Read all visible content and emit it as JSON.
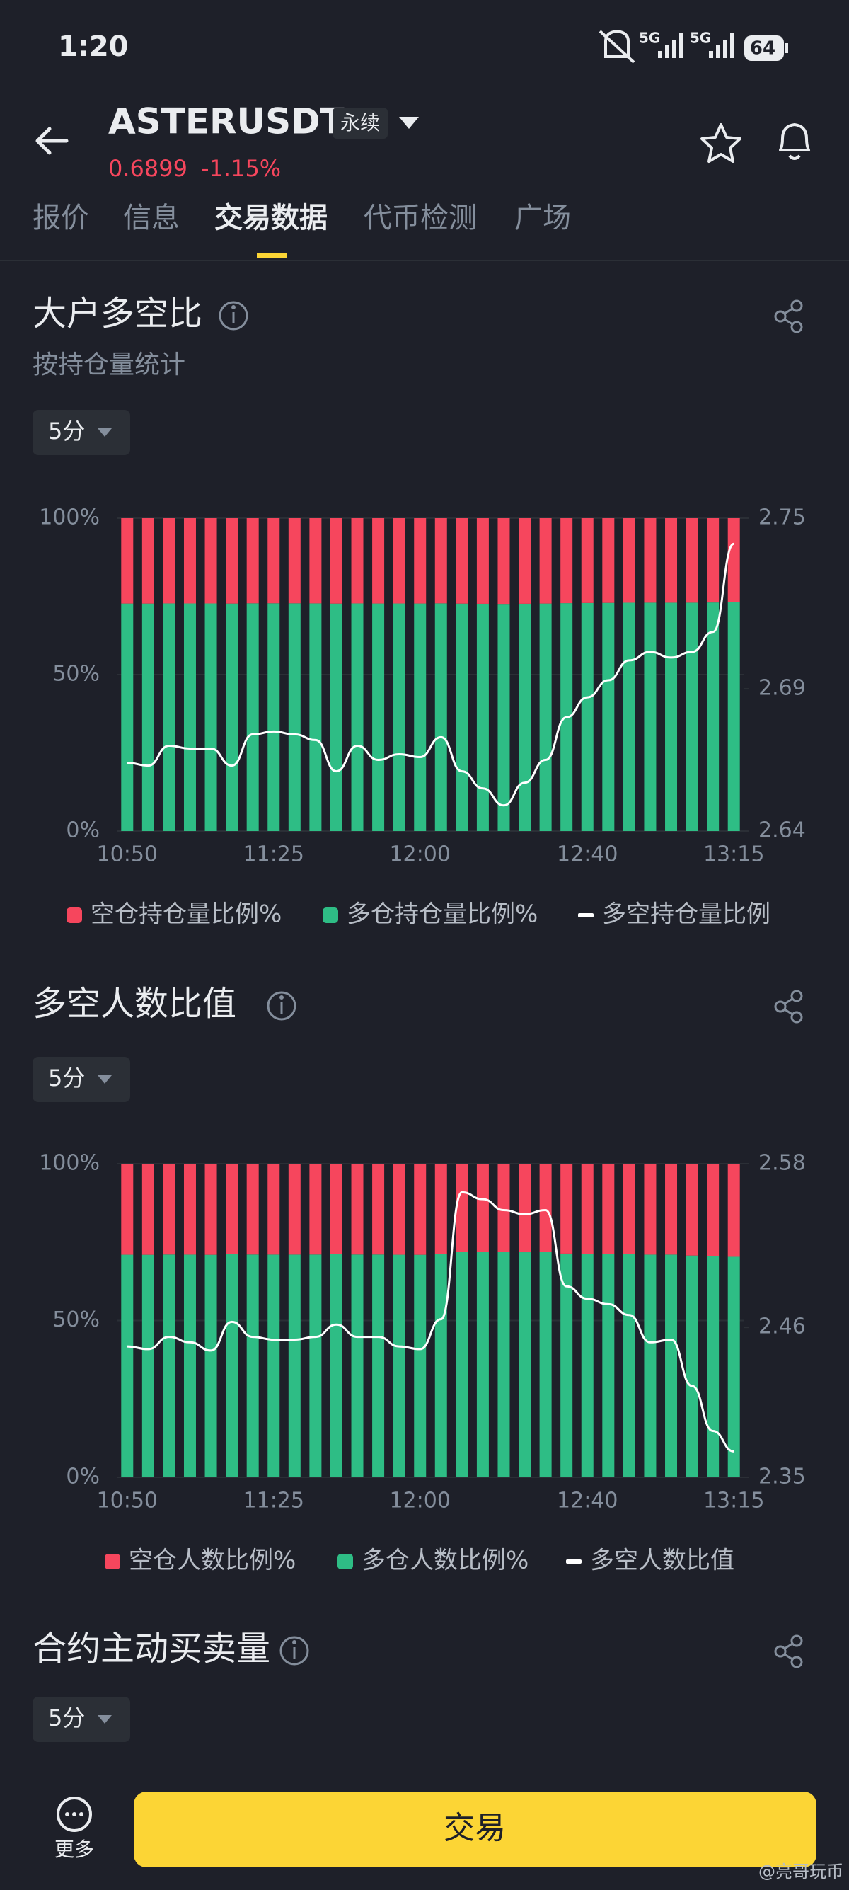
{
  "status_bar": {
    "time": "1:20",
    "network_1": "5G",
    "network_2": "5G",
    "battery": "64"
  },
  "header": {
    "symbol": "ASTERUSDT",
    "contract_type": "永续",
    "price": "0.6899",
    "change": "-1.15%"
  },
  "tabs": [
    "报价",
    "信息",
    "交易数据",
    "代币检测",
    "广场"
  ],
  "sections": [
    {
      "title": "大户多空比",
      "subtitle": "按持仓量统计",
      "interval": "5分"
    },
    {
      "title": "多空人数比值",
      "interval": "5分"
    },
    {
      "title": "合约主动买卖量",
      "interval": "5分"
    }
  ],
  "chart_data": [
    {
      "type": "bar",
      "stacked": true,
      "grid": true,
      "categories": [
        "10:50",
        null,
        null,
        null,
        null,
        null,
        null,
        "11:25",
        null,
        null,
        null,
        null,
        null,
        null,
        "12:00",
        null,
        null,
        null,
        null,
        null,
        null,
        null,
        "12:40",
        null,
        null,
        null,
        null,
        null,
        null,
        "13:15"
      ],
      "ylim": [
        0,
        100
      ],
      "yticks": [
        {
          "value": 0,
          "label": "0%"
        },
        {
          "value": 50,
          "label": "50%"
        },
        {
          "value": 100,
          "label": "100%"
        }
      ],
      "y2lim": [
        2.64,
        2.75
      ],
      "y2ticks": [
        2.64,
        2.69,
        2.75
      ],
      "series": [
        {
          "name": "空仓持仓量比例%",
          "color": "#f6465d",
          "values": [
            27.29,
            27.3,
            27.25,
            27.26,
            27.26,
            27.3,
            27.22,
            27.21,
            27.22,
            27.24,
            27.31,
            27.25,
            27.28,
            27.27,
            27.28,
            27.23,
            27.31,
            27.36,
            27.4,
            27.35,
            27.29,
            27.17,
            27.12,
            27.08,
            27.03,
            27.01,
            27.02,
            27.01,
            26.95,
            26.73
          ]
        },
        {
          "name": "多仓持仓量比例%",
          "color": "#2ebd85",
          "values": [
            72.71,
            72.7,
            72.75,
            72.74,
            72.74,
            72.7,
            72.78,
            72.79,
            72.78,
            72.76,
            72.69,
            72.75,
            72.72,
            72.73,
            72.72,
            72.77,
            72.69,
            72.64,
            72.6,
            72.65,
            72.71,
            72.83,
            72.88,
            72.92,
            72.97,
            72.99,
            72.98,
            72.99,
            73.05,
            73.27
          ]
        },
        {
          "name": "多空持仓量比例",
          "color": "#ffffff",
          "type": "line",
          "axis": "y2",
          "values": [
            2.664,
            2.663,
            2.67,
            2.669,
            2.669,
            2.663,
            2.674,
            2.675,
            2.674,
            2.672,
            2.661,
            2.67,
            2.665,
            2.667,
            2.666,
            2.673,
            2.661,
            2.655,
            2.649,
            2.657,
            2.665,
            2.68,
            2.687,
            2.693,
            2.7,
            2.703,
            2.701,
            2.703,
            2.71,
            2.741
          ]
        }
      ]
    },
    {
      "type": "bar",
      "stacked": true,
      "grid": true,
      "categories": [
        "10:50",
        null,
        null,
        null,
        null,
        null,
        null,
        "11:25",
        null,
        null,
        null,
        null,
        null,
        null,
        "12:00",
        null,
        null,
        null,
        null,
        null,
        null,
        null,
        "12:40",
        null,
        null,
        null,
        null,
        null,
        null,
        "13:15"
      ],
      "ylim": [
        0,
        100
      ],
      "yticks": [
        {
          "value": 0,
          "label": "0%"
        },
        {
          "value": 50,
          "label": "50%"
        },
        {
          "value": 100,
          "label": "100%"
        }
      ],
      "y2lim": [
        2.35,
        2.58
      ],
      "y2ticks": [
        2.35,
        2.46,
        2.58
      ],
      "series": [
        {
          "name": "空仓人数比例%",
          "color": "#f6465d",
          "values": [
            29.02,
            29.04,
            28.96,
            28.99,
            29.04,
            28.87,
            28.96,
            28.98,
            28.98,
            28.96,
            28.89,
            28.96,
            28.96,
            29.02,
            29.04,
            28.85,
            28.1,
            28.14,
            28.2,
            28.22,
            28.2,
            28.65,
            28.73,
            28.76,
            28.83,
            28.99,
            28.98,
            29.27,
            29.55,
            29.68
          ]
        },
        {
          "name": "多仓人数比例%",
          "color": "#2ebd85",
          "values": [
            70.98,
            70.96,
            71.04,
            71.01,
            70.96,
            71.13,
            71.04,
            71.02,
            71.02,
            71.04,
            71.11,
            71.04,
            71.04,
            70.98,
            70.96,
            71.15,
            71.9,
            71.86,
            71.8,
            71.78,
            71.8,
            71.35,
            71.27,
            71.24,
            71.17,
            71.01,
            71.02,
            70.73,
            70.45,
            70.32
          ]
        },
        {
          "name": "多空人数比值",
          "color": "#ffffff",
          "type": "line",
          "axis": "y2",
          "values": [
            2.446,
            2.444,
            2.453,
            2.449,
            2.443,
            2.464,
            2.453,
            2.451,
            2.451,
            2.453,
            2.462,
            2.453,
            2.453,
            2.446,
            2.444,
            2.466,
            2.559,
            2.554,
            2.546,
            2.543,
            2.546,
            2.49,
            2.481,
            2.477,
            2.469,
            2.449,
            2.451,
            2.417,
            2.384,
            2.369
          ]
        }
      ]
    }
  ],
  "bottom_bar": {
    "more": "更多",
    "trade": "交易"
  },
  "watermark": "@亮哥玩币"
}
